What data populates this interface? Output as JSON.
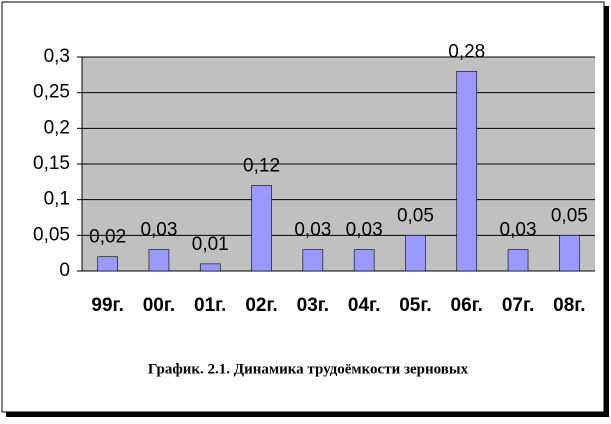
{
  "chart_data": {
    "type": "bar",
    "title": "График. 2.1. Динамика трудоёмкости зерновых",
    "categories": [
      "99г.",
      "00г.",
      "01г.",
      "02г.",
      "03г.",
      "04г.",
      "05г.",
      "06г.",
      "07г.",
      "08г."
    ],
    "values": [
      0.02,
      0.03,
      0.01,
      0.12,
      0.03,
      0.03,
      0.05,
      0.28,
      0.03,
      0.05
    ],
    "value_labels": [
      "0,02",
      "0,03",
      "0,01",
      "0,12",
      "0,03",
      "0,03",
      "0,05",
      "0,28",
      "0,03",
      "0,05"
    ],
    "color": "#9999ff",
    "ylim": [
      0,
      0.3
    ],
    "yticks": [
      0,
      {
        "value": 0.05,
        "label": "0,05"
      },
      {
        "value": 0.1,
        "label": "0,1"
      },
      {
        "value": 0.15,
        "label": "0,15"
      },
      {
        "value": 0.2,
        "label": "0,2"
      },
      {
        "value": 0.25,
        "label": "0,25"
      },
      {
        "value": 0.3,
        "label": "0,3"
      }
    ],
    "grid": true
  }
}
